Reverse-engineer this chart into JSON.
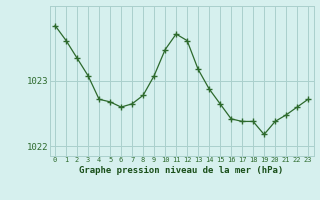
{
  "hours": [
    0,
    1,
    2,
    3,
    4,
    5,
    6,
    7,
    8,
    9,
    10,
    11,
    12,
    13,
    14,
    15,
    16,
    17,
    18,
    19,
    20,
    21,
    22,
    23
  ],
  "pressure": [
    1023.85,
    1023.62,
    1023.35,
    1023.08,
    1022.72,
    1022.68,
    1022.6,
    1022.65,
    1022.78,
    1023.08,
    1023.48,
    1023.72,
    1023.62,
    1023.18,
    1022.88,
    1022.65,
    1022.42,
    1022.38,
    1022.38,
    1022.18,
    1022.38,
    1022.48,
    1022.6,
    1022.72
  ],
  "line_color": "#2d6a2d",
  "marker": "+",
  "marker_size": 4,
  "marker_linewidth": 1.0,
  "background_color": "#d6f0ee",
  "grid_color": "#aacfcc",
  "xlabel": "Graphe pression niveau de la mer (hPa)",
  "xlabel_color": "#1a4f1a",
  "tick_color": "#2d6a2d",
  "ylim": [
    1021.85,
    1024.15
  ],
  "yticks": [
    1022,
    1023
  ],
  "xlim": [
    -0.5,
    23.5
  ],
  "xticks": [
    0,
    1,
    2,
    3,
    4,
    5,
    6,
    7,
    8,
    9,
    10,
    11,
    12,
    13,
    14,
    15,
    16,
    17,
    18,
    19,
    20,
    21,
    22,
    23
  ],
  "xtick_labels": [
    "0",
    "1",
    "2",
    "3",
    "4",
    "5",
    "6",
    "7",
    "8",
    "9",
    "10",
    "11",
    "12",
    "13",
    "14",
    "15",
    "16",
    "17",
    "18",
    "19",
    "20",
    "21",
    "22",
    "23"
  ],
  "figsize": [
    3.2,
    2.0
  ],
  "dpi": 100
}
